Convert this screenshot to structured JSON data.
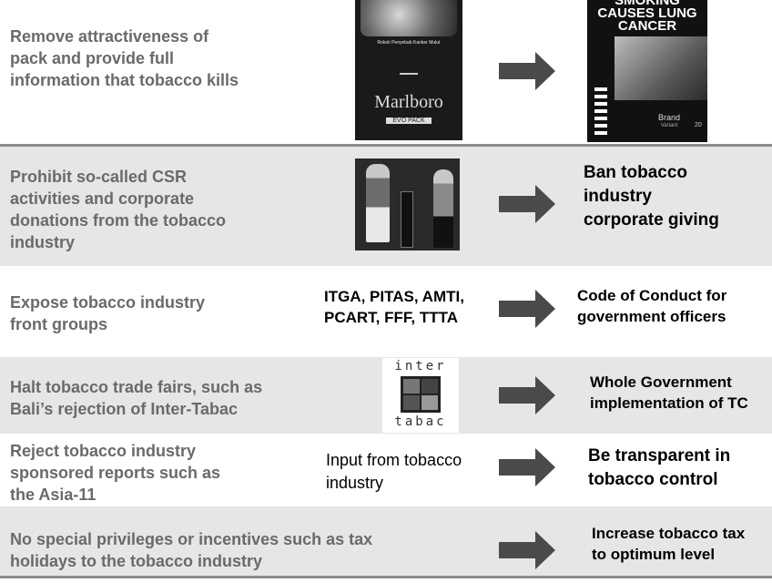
{
  "rows": [
    {
      "left": [
        "Remove attractiveness of",
        "pack and provide full",
        "information that tobacco kills"
      ],
      "pack_before": {
        "warning": "Rokok Penyebab Kanker Mulut",
        "brand": "Marlboro",
        "variant": "EVO PACK"
      },
      "pack_after": {
        "warning": [
          "SMOKING",
          "CAUSES LUNG",
          "CANCER"
        ],
        "brand": "Brand",
        "variant": "Variant",
        "count": "20"
      }
    },
    {
      "left": [
        "Prohibit so-called CSR",
        "activities and corporate",
        "donations from the tobacco",
        "industry"
      ],
      "right": [
        "Ban tobacco",
        "industry",
        "corporate giving"
      ]
    },
    {
      "left": [
        "Expose tobacco industry",
        "front groups"
      ],
      "middle": [
        "ITGA, PITAS, AMTI,",
        "PCART, FFF, TTTA"
      ],
      "right": [
        "Code of Conduct for",
        "government officers"
      ]
    },
    {
      "left": [
        "Halt tobacco trade fairs, such as",
        "Bali’s rejection of Inter-Tabac"
      ],
      "logo": {
        "top": "inter",
        "bottom": "tabac"
      },
      "right": [
        "Whole Government",
        "implementation of TC"
      ]
    },
    {
      "left": [
        "Reject tobacco industry",
        "sponsored reports such as",
        "the Asia-11"
      ],
      "middle": [
        "Input from tobacco",
        "industry"
      ],
      "right": [
        "Be transparent in",
        "tobacco control"
      ]
    },
    {
      "left": [
        "No special privileges or incentives such as tax",
        "holidays to the tobacco industry"
      ],
      "right": [
        "Increase tobacco tax",
        "to optimum level"
      ]
    }
  ],
  "colors": {
    "left_text": "#6a6a6a",
    "shade": "#e6e6e6",
    "arrow": "#4a4a4a",
    "divider": "#8c8c8c"
  }
}
